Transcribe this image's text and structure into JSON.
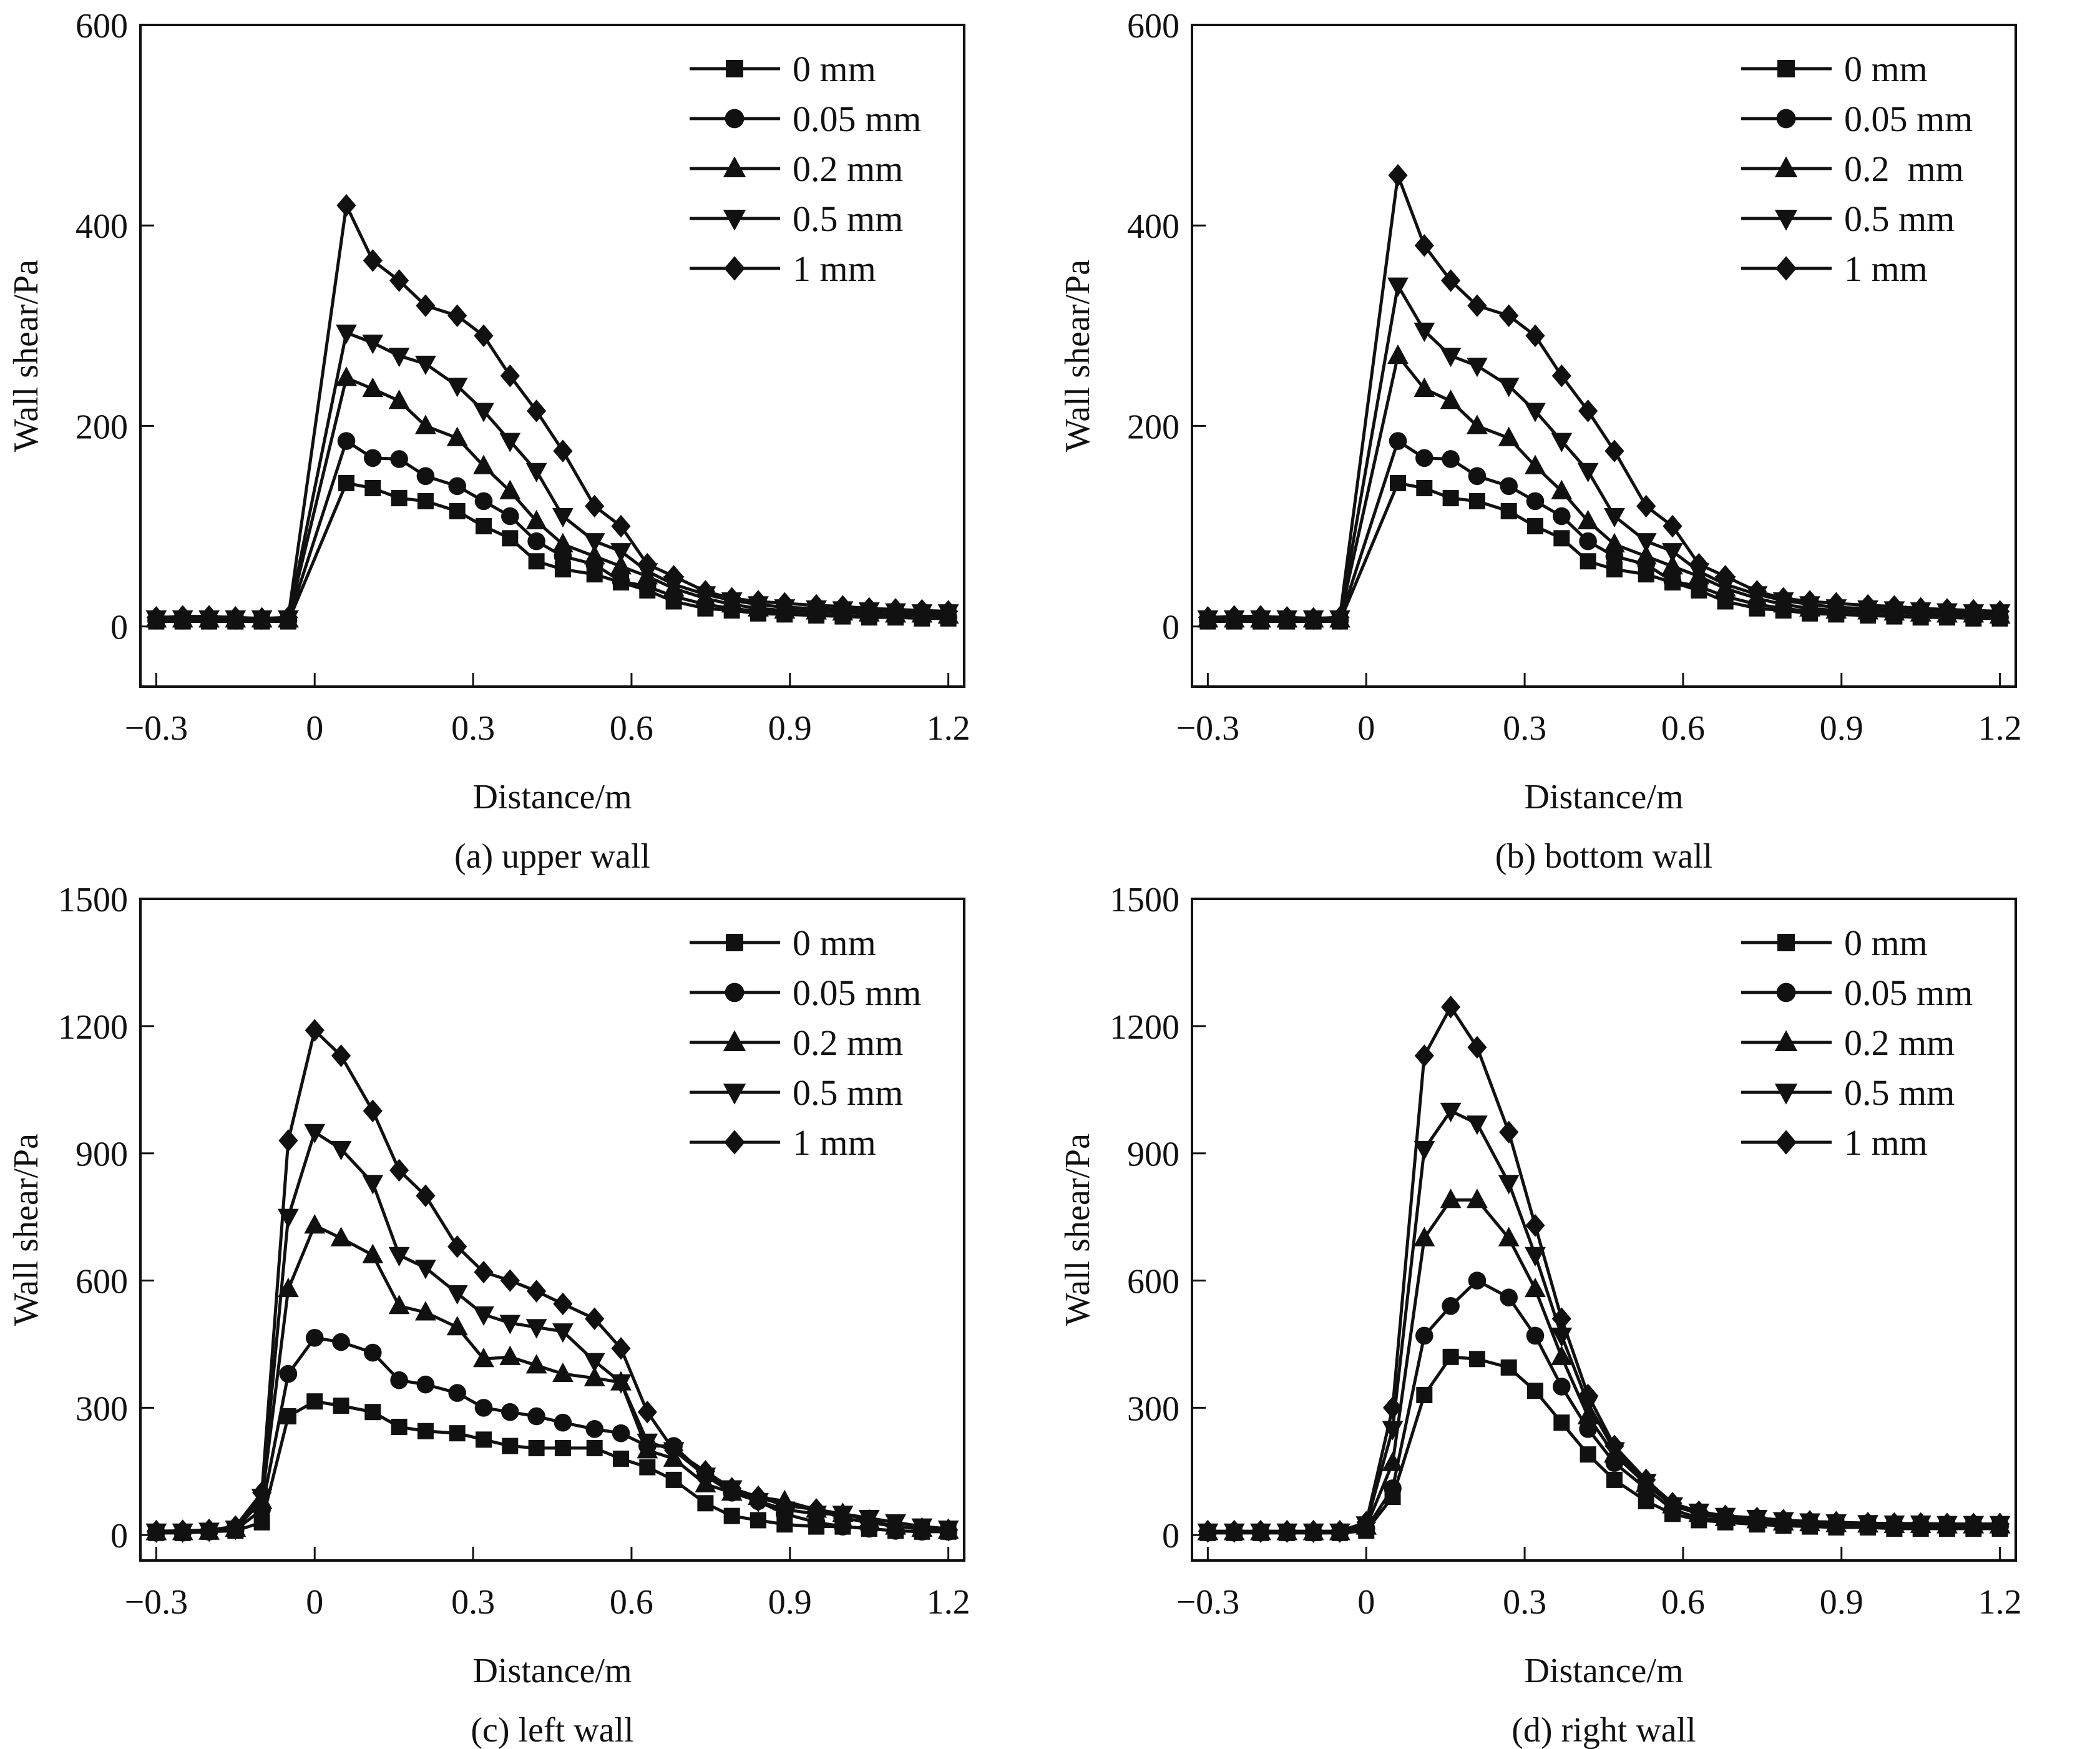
{
  "chart_data": [
    {
      "id": "a",
      "type": "line",
      "caption": "(a) upper wall",
      "xlabel": "Distance/m",
      "ylabel": "Wall shear/Pa",
      "xlim": [
        -0.33,
        1.23
      ],
      "ylim": [
        -60,
        600
      ],
      "xticks": [
        -0.3,
        0,
        0.3,
        0.6,
        0.9,
        1.2
      ],
      "xtick_labels": [
        "−0.3",
        "0",
        "0.3",
        "0.6",
        "0.9",
        "1.2"
      ],
      "yticks": [
        0,
        200,
        400,
        600
      ],
      "ytick_labels": [
        "0",
        "200",
        "400",
        "600"
      ],
      "legend": "top-right",
      "x": [
        -0.3,
        -0.25,
        -0.2,
        -0.15,
        -0.1,
        -0.05,
        0.06,
        0.11,
        0.16,
        0.21,
        0.27,
        0.32,
        0.37,
        0.42,
        0.47,
        0.53,
        0.58,
        0.63,
        0.68,
        0.74,
        0.79,
        0.84,
        0.89,
        0.95,
        1.0,
        1.05,
        1.1,
        1.15,
        1.2
      ],
      "series": [
        {
          "name": "0 mm",
          "marker": "square",
          "values": [
            5,
            5,
            5,
            5,
            5,
            5,
            143,
            138,
            128,
            125,
            115,
            100,
            88,
            65,
            57,
            52,
            44,
            36,
            25,
            18,
            16,
            13,
            12,
            11,
            10,
            9,
            9,
            8,
            8
          ]
        },
        {
          "name": "0.05 mm",
          "marker": "circle",
          "values": [
            6,
            6,
            6,
            6,
            6,
            6,
            185,
            168,
            167,
            150,
            140,
            125,
            110,
            85,
            70,
            62,
            45,
            40,
            30,
            22,
            18,
            15,
            13,
            12,
            11,
            10,
            10,
            9,
            9
          ]
        },
        {
          "name": "0.2 mm",
          "marker": "triangle-up",
          "values": [
            7,
            7,
            7,
            7,
            7,
            7,
            248,
            237,
            225,
            200,
            188,
            160,
            135,
            105,
            82,
            70,
            60,
            50,
            38,
            28,
            22,
            18,
            16,
            15,
            14,
            13,
            12,
            12,
            11
          ]
        },
        {
          "name": "0.5 mm",
          "marker": "triangle-down",
          "values": [
            8,
            8,
            8,
            8,
            8,
            8,
            293,
            283,
            270,
            262,
            240,
            215,
            185,
            155,
            110,
            85,
            75,
            55,
            42,
            32,
            26,
            22,
            19,
            18,
            17,
            16,
            15,
            14,
            14
          ]
        },
        {
          "name": "1 mm",
          "marker": "diamond",
          "values": [
            9,
            10,
            10,
            9,
            8,
            9,
            420,
            365,
            345,
            320,
            310,
            290,
            250,
            215,
            175,
            120,
            100,
            62,
            50,
            35,
            28,
            25,
            23,
            21,
            20,
            18,
            17,
            16,
            15
          ]
        }
      ]
    },
    {
      "id": "b",
      "type": "line",
      "caption": "(b) bottom wall",
      "xlabel": "Distance/m",
      "ylabel": "Wall shear/Pa",
      "xlim": [
        -0.33,
        1.23
      ],
      "ylim": [
        -60,
        600
      ],
      "xticks": [
        -0.3,
        0,
        0.3,
        0.6,
        0.9,
        1.2
      ],
      "xtick_labels": [
        "−0.3",
        "0",
        "0.3",
        "0.6",
        "0.9",
        "1.2"
      ],
      "yticks": [
        0,
        200,
        400,
        600
      ],
      "ytick_labels": [
        "0",
        "200",
        "400",
        "600"
      ],
      "legend": "top-right",
      "x": [
        -0.3,
        -0.25,
        -0.2,
        -0.15,
        -0.1,
        -0.05,
        0.06,
        0.11,
        0.16,
        0.21,
        0.27,
        0.32,
        0.37,
        0.42,
        0.47,
        0.53,
        0.58,
        0.63,
        0.68,
        0.74,
        0.79,
        0.84,
        0.89,
        0.95,
        1.0,
        1.05,
        1.1,
        1.15,
        1.2
      ],
      "series": [
        {
          "name": "0 mm",
          "marker": "square",
          "values": [
            5,
            5,
            5,
            5,
            5,
            5,
            143,
            138,
            128,
            125,
            115,
            100,
            88,
            65,
            57,
            52,
            44,
            36,
            25,
            18,
            16,
            13,
            12,
            11,
            10,
            9,
            9,
            8,
            8
          ]
        },
        {
          "name": "0.05 mm",
          "marker": "circle",
          "values": [
            6,
            6,
            6,
            6,
            6,
            6,
            185,
            168,
            167,
            150,
            140,
            125,
            110,
            85,
            70,
            62,
            45,
            40,
            30,
            22,
            18,
            15,
            13,
            12,
            11,
            10,
            10,
            9,
            9
          ]
        },
        {
          "name": "0.2  mm",
          "marker": "triangle-up",
          "values": [
            7,
            7,
            7,
            7,
            7,
            7,
            270,
            237,
            225,
            200,
            188,
            160,
            135,
            105,
            82,
            70,
            60,
            50,
            38,
            28,
            22,
            18,
            16,
            15,
            14,
            13,
            12,
            12,
            11
          ]
        },
        {
          "name": "0.5 mm",
          "marker": "triangle-down",
          "values": [
            8,
            8,
            8,
            8,
            8,
            8,
            340,
            295,
            270,
            260,
            240,
            215,
            185,
            155,
            110,
            85,
            75,
            55,
            42,
            32,
            26,
            22,
            19,
            18,
            17,
            16,
            15,
            14,
            14
          ]
        },
        {
          "name": "1 mm",
          "marker": "diamond",
          "values": [
            9,
            10,
            10,
            9,
            8,
            9,
            450,
            380,
            345,
            320,
            310,
            290,
            250,
            215,
            175,
            120,
            100,
            62,
            50,
            35,
            28,
            25,
            23,
            21,
            20,
            18,
            17,
            16,
            15
          ]
        }
      ]
    },
    {
      "id": "c",
      "type": "line",
      "caption": "(c) left wall",
      "xlabel": "Distance/m",
      "ylabel": "Wall shear/Pa",
      "xlim": [
        -0.33,
        1.23
      ],
      "ylim": [
        -60,
        1500
      ],
      "xticks": [
        -0.3,
        0,
        0.3,
        0.6,
        0.9,
        1.2
      ],
      "xtick_labels": [
        "−0.3",
        "0",
        "0.3",
        "0.6",
        "0.9",
        "1.2"
      ],
      "yticks": [
        0,
        300,
        600,
        900,
        1200,
        1500
      ],
      "ytick_labels": [
        "0",
        "300",
        "600",
        "900",
        "1200",
        "1500"
      ],
      "legend": "top-right",
      "x": [
        -0.3,
        -0.25,
        -0.2,
        -0.15,
        -0.1,
        -0.05,
        0.0,
        0.05,
        0.11,
        0.16,
        0.21,
        0.27,
        0.32,
        0.37,
        0.42,
        0.47,
        0.53,
        0.58,
        0.63,
        0.68,
        0.74,
        0.79,
        0.84,
        0.89,
        0.95,
        1.0,
        1.05,
        1.1,
        1.15,
        1.2
      ],
      "series": [
        {
          "name": "0 mm",
          "marker": "square",
          "values": [
            5,
            5,
            8,
            10,
            30,
            280,
            315,
            305,
            290,
            255,
            245,
            240,
            225,
            210,
            205,
            205,
            205,
            180,
            160,
            130,
            75,
            45,
            35,
            25,
            20,
            20,
            15,
            10,
            8,
            8
          ]
        },
        {
          "name": "0.05 mm",
          "marker": "circle",
          "values": [
            6,
            6,
            8,
            12,
            60,
            380,
            465,
            455,
            430,
            365,
            355,
            335,
            300,
            290,
            280,
            265,
            250,
            240,
            210,
            210,
            140,
            100,
            80,
            50,
            30,
            20,
            15,
            10,
            8,
            8
          ]
        },
        {
          "name": "0.2 mm",
          "marker": "triangle-up",
          "values": [
            7,
            7,
            8,
            15,
            80,
            580,
            730,
            700,
            660,
            540,
            525,
            490,
            415,
            420,
            400,
            380,
            370,
            360,
            200,
            180,
            120,
            100,
            90,
            80,
            60,
            50,
            35,
            20,
            15,
            10
          ]
        },
        {
          "name": "0.5 mm",
          "marker": "triangle-down",
          "values": [
            8,
            8,
            10,
            15,
            90,
            750,
            950,
            910,
            830,
            660,
            630,
            570,
            520,
            500,
            490,
            480,
            410,
            360,
            220,
            200,
            140,
            110,
            80,
            60,
            50,
            50,
            40,
            30,
            20,
            15
          ]
        },
        {
          "name": "1 mm",
          "marker": "diamond",
          "values": [
            9,
            10,
            12,
            20,
            100,
            930,
            1190,
            1130,
            1000,
            860,
            800,
            680,
            620,
            600,
            575,
            545,
            510,
            440,
            290,
            200,
            150,
            110,
            90,
            70,
            60,
            40,
            30,
            20,
            15,
            12
          ]
        }
      ]
    },
    {
      "id": "d",
      "type": "line",
      "caption": "(d) right wall",
      "xlabel": "Distance/m",
      "ylabel": "Wall shear/Pa",
      "xlim": [
        -0.33,
        1.23
      ],
      "ylim": [
        -60,
        1500
      ],
      "xticks": [
        -0.3,
        0,
        0.3,
        0.6,
        0.9,
        1.2
      ],
      "xtick_labels": [
        "−0.3",
        "0",
        "0.3",
        "0.6",
        "0.9",
        "1.2"
      ],
      "yticks": [
        0,
        300,
        600,
        900,
        1200,
        1500
      ],
      "ytick_labels": [
        "0",
        "300",
        "600",
        "900",
        "1200",
        "1500"
      ],
      "legend": "top-right",
      "x": [
        -0.3,
        -0.25,
        -0.2,
        -0.15,
        -0.1,
        -0.05,
        0.0,
        0.05,
        0.11,
        0.16,
        0.21,
        0.27,
        0.32,
        0.37,
        0.42,
        0.47,
        0.53,
        0.58,
        0.63,
        0.68,
        0.74,
        0.79,
        0.84,
        0.89,
        0.95,
        1.0,
        1.05,
        1.1,
        1.15,
        1.2
      ],
      "series": [
        {
          "name": "0 mm",
          "marker": "square",
          "values": [
            5,
            5,
            5,
            5,
            5,
            5,
            10,
            90,
            330,
            420,
            415,
            395,
            340,
            265,
            190,
            130,
            80,
            50,
            35,
            30,
            25,
            22,
            20,
            18,
            18,
            15,
            15,
            15,
            15,
            15
          ]
        },
        {
          "name": "0.05 mm",
          "marker": "circle",
          "values": [
            6,
            6,
            6,
            6,
            6,
            6,
            15,
            110,
            470,
            540,
            600,
            560,
            470,
            350,
            250,
            170,
            110,
            60,
            40,
            35,
            30,
            28,
            25,
            23,
            22,
            20,
            20,
            20,
            20,
            20
          ]
        },
        {
          "name": "0.2 mm",
          "marker": "triangle-up",
          "values": [
            7,
            7,
            7,
            7,
            7,
            7,
            20,
            170,
            700,
            790,
            790,
            700,
            580,
            420,
            280,
            190,
            120,
            70,
            50,
            40,
            35,
            30,
            28,
            26,
            25,
            24,
            24,
            23,
            23,
            23
          ]
        },
        {
          "name": "0.5 mm",
          "marker": "triangle-down",
          "values": [
            8,
            8,
            8,
            8,
            8,
            8,
            25,
            250,
            910,
            1000,
            970,
            830,
            660,
            470,
            310,
            200,
            125,
            70,
            55,
            45,
            40,
            35,
            32,
            30,
            28,
            27,
            27,
            26,
            26,
            26
          ]
        },
        {
          "name": "1 mm",
          "marker": "diamond",
          "values": [
            9,
            9,
            9,
            9,
            9,
            9,
            30,
            300,
            1130,
            1245,
            1150,
            950,
            730,
            510,
            330,
            210,
            130,
            75,
            55,
            45,
            40,
            35,
            32,
            30,
            28,
            27,
            27,
            26,
            26,
            26
          ]
        }
      ]
    }
  ]
}
